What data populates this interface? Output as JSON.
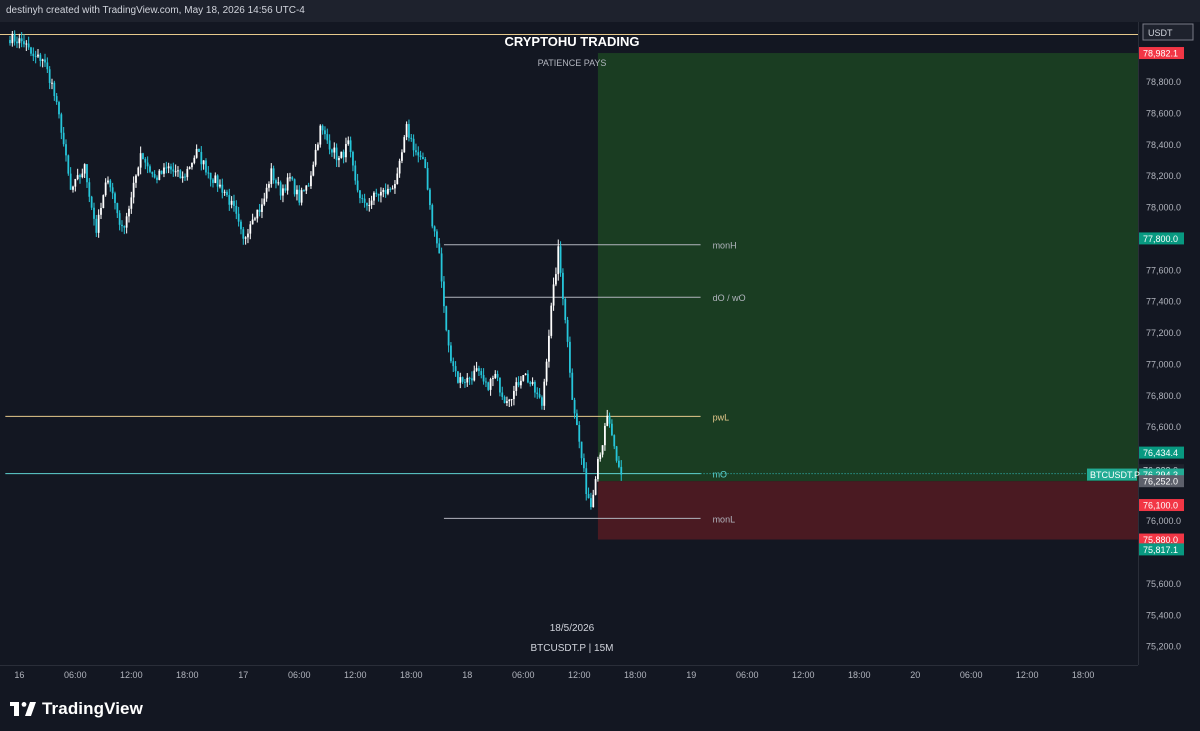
{
  "header": {
    "credit": "destinyh created with TradingView.com, May 18, 2026 14:56 UTC-4"
  },
  "logo": {
    "text": "TradingView"
  },
  "chart_data": {
    "type": "candlestick",
    "title": "CRYPTOHU TRADING",
    "subtitle": "PATIENCE  PAYS",
    "bottom_date": "18/5/2026",
    "bottom_symbol": "BTCUSDT.P | 15M",
    "currency_label": "USDT",
    "symbol_tag": "BTCUSDT.P",
    "ylim": [
      75080,
      79180
    ],
    "y_ticks": [
      {
        "v": 78800,
        "t": "78,800.0"
      },
      {
        "v": 78600,
        "t": "78,600.0"
      },
      {
        "v": 78400,
        "t": "78,400.0"
      },
      {
        "v": 78200,
        "t": "78,200.0"
      },
      {
        "v": 78000,
        "t": "78,000.0"
      },
      {
        "v": 77600,
        "t": "77,600.0"
      },
      {
        "v": 77400,
        "t": "77,400.0"
      },
      {
        "v": 77200,
        "t": "77,200.0"
      },
      {
        "v": 77000,
        "t": "77,000.0"
      },
      {
        "v": 76800,
        "t": "76,800.0"
      },
      {
        "v": 76600,
        "t": "76,600.0"
      },
      {
        "v": 76000,
        "t": "76,000.0"
      },
      {
        "v": 75600,
        "t": "75,600.0"
      },
      {
        "v": 75400,
        "t": "75,400.0"
      },
      {
        "v": 75200,
        "t": "75,200.0"
      }
    ],
    "x_ticks": [
      {
        "i": 4,
        "t": "16"
      },
      {
        "i": 28,
        "t": "06:00"
      },
      {
        "i": 52,
        "t": "12:00"
      },
      {
        "i": 76,
        "t": "18:00"
      },
      {
        "i": 100,
        "t": "17"
      },
      {
        "i": 124,
        "t": "06:00"
      },
      {
        "i": 148,
        "t": "12:00"
      },
      {
        "i": 172,
        "t": "18:00"
      },
      {
        "i": 196,
        "t": "18"
      },
      {
        "i": 220,
        "t": "06:00"
      },
      {
        "i": 244,
        "t": "12:00"
      },
      {
        "i": 268,
        "t": "18:00"
      },
      {
        "i": 292,
        "t": "19"
      },
      {
        "i": 316,
        "t": "06:00"
      },
      {
        "i": 340,
        "t": "12:00"
      },
      {
        "i": 364,
        "t": "18:00"
      },
      {
        "i": 388,
        "t": "20"
      },
      {
        "i": 412,
        "t": "06:00"
      },
      {
        "i": 436,
        "t": "12:00"
      },
      {
        "i": 460,
        "t": "18:00"
      }
    ],
    "price_tags": [
      {
        "v": 78982.1,
        "t": "78,982.1",
        "bg": "#f23645",
        "fg": "#ffffff"
      },
      {
        "v": 77800.0,
        "t": "77,800.0",
        "bg": "#089981",
        "fg": "#ffffff"
      },
      {
        "v": 76434.4,
        "t": "76,434.4",
        "bg": "#089981",
        "fg": "#ffffff"
      },
      {
        "v": 76322.0,
        "t": "76,322.0",
        "bg": "#1e222d",
        "fg": "#d1d4dc"
      },
      {
        "v": 76294.3,
        "t": "76,294.3",
        "bg": "#22ab94",
        "fg": "#ffffff"
      },
      {
        "v": 76252.0,
        "t": "76,252.0",
        "bg": "#5d606b",
        "fg": "#ffffff"
      },
      {
        "v": 76100.0,
        "t": "76,100.0",
        "bg": "#f23645",
        "fg": "#ffffff"
      },
      {
        "v": 75880.0,
        "t": "75,880.0",
        "bg": "#f23645",
        "fg": "#ffffff"
      },
      {
        "v": 75817.1,
        "t": "75,817.1",
        "bg": "#089981",
        "fg": "#ffffff"
      }
    ],
    "levels": [
      {
        "name": "monH",
        "price": 77760,
        "i0": 186,
        "i1": 296,
        "color": "#b2b5be"
      },
      {
        "name": "dO / wO",
        "price": 77425,
        "i0": 186,
        "i1": 296,
        "color": "#b2b5be"
      },
      {
        "name": "pwL",
        "price": 76665,
        "i0": -2,
        "i1": 296,
        "color": "#e6c98c"
      },
      {
        "name": "mO",
        "price": 76300,
        "i0": -2,
        "i1": 296,
        "color": "#5fd3d3"
      },
      {
        "name": "monL",
        "price": 76015,
        "i0": 186,
        "i1": 296,
        "color": "#b2b5be"
      }
    ],
    "ath_line": {
      "price": 79100,
      "color": "#e6c98c"
    },
    "position": {
      "entry": 76252,
      "target": 78982.1,
      "stop": 75880,
      "i_start": 252
    },
    "series": [
      {
        "name": "BTCUSDT.P 15M",
        "candles_ohlc_waypoints": [
          [
            0,
            79080
          ],
          [
            6,
            79050
          ],
          [
            10,
            78950
          ],
          [
            14,
            78950
          ],
          [
            18,
            78780
          ],
          [
            22,
            78500
          ],
          [
            26,
            78100
          ],
          [
            32,
            78250
          ],
          [
            37,
            77850
          ],
          [
            42,
            78200
          ],
          [
            48,
            77850
          ],
          [
            52,
            78050
          ],
          [
            56,
            78350
          ],
          [
            62,
            78180
          ],
          [
            68,
            78250
          ],
          [
            74,
            78180
          ],
          [
            80,
            78350
          ],
          [
            86,
            78200
          ],
          [
            92,
            78100
          ],
          [
            96,
            77980
          ],
          [
            100,
            77780
          ],
          [
            104,
            77950
          ],
          [
            108,
            78000
          ],
          [
            112,
            78220
          ],
          [
            116,
            78100
          ],
          [
            120,
            78180
          ],
          [
            124,
            78050
          ],
          [
            128,
            78150
          ],
          [
            133,
            78500
          ],
          [
            137,
            78400
          ],
          [
            141,
            78300
          ],
          [
            145,
            78400
          ],
          [
            148,
            78150
          ],
          [
            152,
            78000
          ],
          [
            157,
            78080
          ],
          [
            162,
            78100
          ],
          [
            166,
            78180
          ],
          [
            170,
            78500
          ],
          [
            174,
            78350
          ],
          [
            178,
            78250
          ],
          [
            181,
            77900
          ],
          [
            184,
            77700
          ],
          [
            186,
            77350
          ],
          [
            188,
            77100
          ],
          [
            192,
            76900
          ],
          [
            196,
            76900
          ],
          [
            200,
            76950
          ],
          [
            204,
            76850
          ],
          [
            208,
            76920
          ],
          [
            212,
            76780
          ],
          [
            216,
            76820
          ],
          [
            220,
            76950
          ],
          [
            224,
            76850
          ],
          [
            228,
            76740
          ],
          [
            232,
            77350
          ],
          [
            235,
            77720
          ],
          [
            238,
            77300
          ],
          [
            241,
            76800
          ],
          [
            244,
            76500
          ],
          [
            247,
            76200
          ],
          [
            249,
            76100
          ],
          [
            252,
            76400
          ],
          [
            254,
            76500
          ],
          [
            256,
            76650
          ],
          [
            258,
            76550
          ],
          [
            260,
            76350
          ],
          [
            262,
            76294
          ]
        ]
      }
    ]
  }
}
